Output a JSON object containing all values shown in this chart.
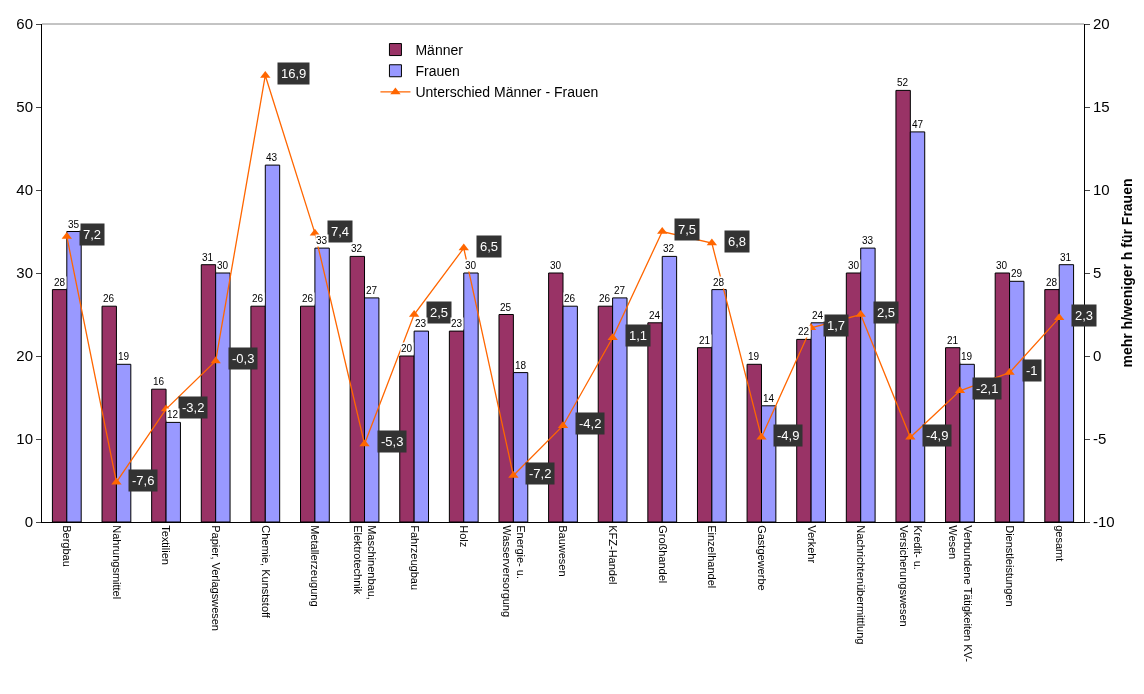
{
  "chart_data": {
    "type": "bar",
    "y2label": "mehr h/weniger h für Frauen",
    "categories": [
      "Bergbau",
      "Nahrungsmittel",
      "Textilien",
      "Papier, Verlagswesen",
      "Chemie, Kunststoff",
      "Metallerzeugung",
      "Maschinenbau,\nElektrotechnik",
      "Fahrzeugbau",
      "Holz",
      "Energie- u.\nWasserversorgung",
      "Bauwesen",
      "KFZ-Handel",
      "Großhandel",
      "Einzelhandel",
      "Gastgewerbe",
      "Verkehr",
      "Nachrichtenübermittlung",
      "Kredit- u.\nVersicherungswesen",
      "Verbundene Tätigkeiten KV-\nWesen",
      "Dienstleistungen",
      "gesamt"
    ],
    "series": [
      {
        "name": "Männer",
        "color": "#993366",
        "values": [
          28,
          26,
          16,
          31,
          26,
          26,
          32,
          20,
          23,
          25,
          30,
          26,
          24,
          21,
          19,
          22,
          30,
          52,
          21,
          30,
          28
        ]
      },
      {
        "name": "Frauen",
        "color": "#9999ff",
        "values": [
          35,
          19,
          12,
          30,
          43,
          33,
          27,
          23,
          30,
          18,
          26,
          27,
          32,
          28,
          14,
          24,
          33,
          47,
          19,
          29,
          31
        ]
      },
      {
        "name": "Unterschied Männer - Frauen",
        "type": "line",
        "axis": "y2",
        "color": "#ff6600",
        "marker": "triangle",
        "values": [
          7.2,
          -7.6,
          -3.2,
          -0.3,
          16.9,
          7.4,
          -5.3,
          2.5,
          6.5,
          -7.2,
          -4.2,
          1.1,
          7.5,
          6.8,
          -4.9,
          1.7,
          2.5,
          -4.9,
          -2.1,
          -1,
          2.3
        ],
        "value_labels": [
          "7,2",
          "-7,6",
          "-3,2",
          "-0,3",
          "16,9",
          "7,4",
          "-5,3",
          "2,5",
          "6,5",
          "-7,2",
          "-4,2",
          "1,1",
          "7,5",
          "6,8",
          "-4,9",
          "1,7",
          "2,5",
          "-4,9",
          "-2,1",
          "-1",
          "2,3"
        ]
      }
    ],
    "ylim": [
      0,
      60
    ],
    "yticks": [
      0,
      10,
      20,
      30,
      40,
      50,
      60
    ],
    "y2lim": [
      -10,
      20
    ],
    "y2ticks": [
      -10,
      -5,
      0,
      5,
      10,
      15,
      20
    ],
    "data_labels": true,
    "grid": false,
    "legend": "top"
  }
}
